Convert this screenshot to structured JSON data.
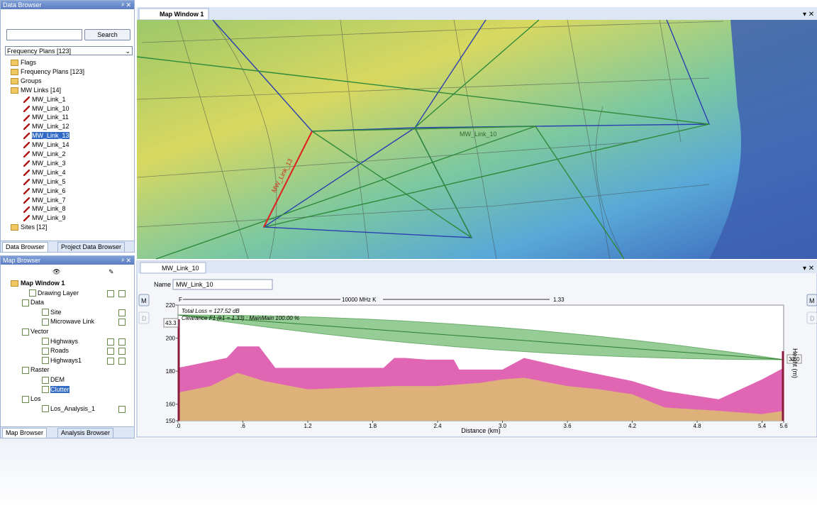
{
  "data_browser": {
    "title": "Data Browser",
    "search_button": "Search",
    "dropdown": "Frequency Plans [123]",
    "tree_top": [
      "Flags",
      "Frequency Plans [123]",
      "Groups",
      "MW Links [14]"
    ],
    "mw_links": [
      "MW_Link_1",
      "MW_Link_10",
      "MW_Link_11",
      "MW_Link_12",
      "MW_Link_13",
      "MW_Link_14",
      "MW_Link_2",
      "MW_Link_3",
      "MW_Link_4",
      "MW_Link_5",
      "MW_Link_6",
      "MW_Link_7",
      "MW_Link_8",
      "MW_Link_9"
    ],
    "tree_bottom": [
      "Sites [12]"
    ],
    "tabs": [
      "Data Browser",
      "Project Data Browser"
    ]
  },
  "map_browser": {
    "title": "Map Browser",
    "items": [
      "Map Window 1",
      "Drawing Layer",
      "Data",
      "Site",
      "Microwave Link",
      "Vector",
      "Highways",
      "Roads",
      "Highways1",
      "Raster",
      "DEM",
      "Clutter",
      "Los",
      "Los_Analysis_1"
    ],
    "tabs": [
      "Map Browser",
      "Analysis Browser"
    ]
  },
  "map_window": {
    "tab": "Map Window 1",
    "labels": [
      "MW_Link_10",
      "MW_Link_13"
    ]
  },
  "profile": {
    "tab": "MW_Link_10",
    "name_label": "Name",
    "name_value": "MW_Link_10",
    "button_m": "M",
    "button_d": "D",
    "freq_left": "F",
    "freq_mid": "10000 MHz K",
    "freq_right": "1.33"
  },
  "chart_data": {
    "type": "area",
    "annotations": [
      "Total Loss = 127.52 dB",
      "Clearance F1 (k1 = 1.33) : MainMain 100.00 %"
    ],
    "left_height": "43.3",
    "right_height": "33.0",
    "xlabel": "Distance (km)",
    "ylabel": "Height (m)",
    "xlim": [
      0,
      5.6
    ],
    "ylim": [
      150,
      220
    ],
    "xticks": [
      {
        "value": 0,
        "label": ".0"
      },
      {
        "value": 0.6,
        "label": ".6"
      },
      1.2,
      1.8,
      2.4,
      {
        "value": 3,
        "label": "3.0"
      },
      3.6,
      4.2,
      4.8,
      5.4,
      5.6
    ],
    "yticks": [
      150,
      160,
      180,
      200,
      220
    ],
    "series": [
      {
        "color": "#e066b4",
        "x": [
          0,
          0.45,
          0.55,
          0.75,
          0.9,
          1.9,
          2.0,
          2.1,
          2.3,
          2.55,
          2.6,
          3.0,
          3.2,
          3.6,
          4.2,
          4.5,
          5.0,
          5.4,
          5.6
        ],
        "values": [
          182,
          188,
          195,
          195,
          182,
          182,
          188,
          188,
          187,
          187,
          181,
          181,
          188,
          182,
          174,
          168,
          163,
          175,
          182
        ]
      },
      {
        "color": "#deb07a",
        "x": [
          0,
          0.3,
          0.55,
          0.8,
          1.2,
          1.6,
          2.0,
          2.4,
          2.8,
          3.0,
          3.2,
          3.6,
          3.9,
          4.2,
          4.5,
          5.0,
          5.4,
          5.6
        ],
        "values": [
          167,
          171,
          179,
          174,
          169,
          170,
          171,
          171,
          173,
          175,
          176,
          171,
          169,
          166,
          158,
          156,
          154,
          156
        ]
      },
      {
        "color": "#2e7d32",
        "x": [
          0,
          5.6
        ],
        "values": [
          214,
          187
        ]
      }
    ]
  }
}
